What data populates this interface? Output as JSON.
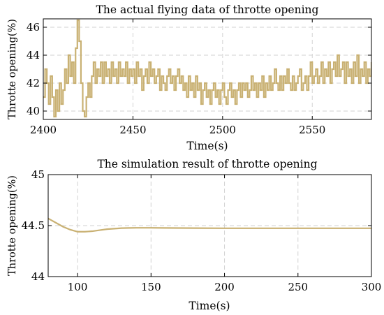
{
  "chart_data": [
    {
      "type": "line",
      "title": "The actual flying data of throtte opening",
      "xlabel": "Time(s)",
      "ylabel": "Throtte opening(%)",
      "xlim": [
        2400,
        2583
      ],
      "ylim": [
        39.4,
        46.6
      ],
      "xticks": [
        2400,
        2450,
        2500,
        2550
      ],
      "yticks": [
        40,
        42,
        44,
        46
      ],
      "grid": true,
      "color": "#c9b173",
      "series": [
        {
          "x": [
            2400,
            2401,
            2402,
            2403,
            2404,
            2405,
            2406,
            2407,
            2408,
            2409,
            2410,
            2411,
            2412,
            2413,
            2414,
            2415,
            2416,
            2417,
            2418,
            2419,
            2420,
            2421,
            2422,
            2423,
            2424,
            2425,
            2426,
            2427,
            2428,
            2429,
            2430,
            2431,
            2432,
            2433,
            2434,
            2435,
            2436,
            2437,
            2438,
            2439,
            2440,
            2441,
            2442,
            2443,
            2444,
            2445,
            2446,
            2447,
            2448,
            2449,
            2450,
            2451,
            2452,
            2453,
            2454,
            2455,
            2456,
            2457,
            2458,
            2459,
            2460,
            2461,
            2462,
            2463,
            2464,
            2465,
            2466,
            2467,
            2468,
            2469,
            2470,
            2471,
            2472,
            2473,
            2474,
            2475,
            2476,
            2477,
            2478,
            2479,
            2480,
            2481,
            2482,
            2483,
            2484,
            2485,
            2486,
            2487,
            2488,
            2489,
            2490,
            2491,
            2492,
            2493,
            2494,
            2495,
            2496,
            2497,
            2498,
            2499,
            2500,
            2501,
            2502,
            2503,
            2504,
            2505,
            2506,
            2507,
            2508,
            2509,
            2510,
            2511,
            2512,
            2513,
            2514,
            2515,
            2516,
            2517,
            2518,
            2519,
            2520,
            2521,
            2522,
            2523,
            2524,
            2525,
            2526,
            2527,
            2528,
            2529,
            2530,
            2531,
            2532,
            2533,
            2534,
            2535,
            2536,
            2537,
            2538,
            2539,
            2540,
            2541,
            2542,
            2543,
            2544,
            2545,
            2546,
            2547,
            2548,
            2549,
            2550,
            2551,
            2552,
            2553,
            2554,
            2555,
            2556,
            2557,
            2558,
            2559,
            2560,
            2561,
            2562,
            2563,
            2564,
            2565,
            2566,
            2567,
            2568,
            2569,
            2570,
            2571,
            2572,
            2573,
            2574,
            2575,
            2576,
            2577,
            2578,
            2579,
            2580,
            2581,
            2582,
            2583
          ],
          "y": [
            41.0,
            43.0,
            42.0,
            40.5,
            42.5,
            41.0,
            39.6,
            41.5,
            40.0,
            42.0,
            40.5,
            41.5,
            43.0,
            42.0,
            44.0,
            42.5,
            43.5,
            42.0,
            44.5,
            46.5,
            45.0,
            42.0,
            40.0,
            39.6,
            41.0,
            42.0,
            41.0,
            42.5,
            43.5,
            42.0,
            43.0,
            42.5,
            43.5,
            42.0,
            43.5,
            42.5,
            43.0,
            42.0,
            43.5,
            42.5,
            43.0,
            42.0,
            43.5,
            42.5,
            43.0,
            42.5,
            43.5,
            42.0,
            43.0,
            42.5,
            43.0,
            42.0,
            43.5,
            42.5,
            43.0,
            41.5,
            42.5,
            43.0,
            42.0,
            43.5,
            42.5,
            43.0,
            42.0,
            42.5,
            43.0,
            41.5,
            42.5,
            42.0,
            41.5,
            42.5,
            43.0,
            42.0,
            42.5,
            41.5,
            42.5,
            43.0,
            42.0,
            42.5,
            41.5,
            42.0,
            41.0,
            42.5,
            41.5,
            42.0,
            41.0,
            42.5,
            41.5,
            42.0,
            40.5,
            41.5,
            42.0,
            41.0,
            41.5,
            40.5,
            41.5,
            42.0,
            41.0,
            41.5,
            40.5,
            41.5,
            42.0,
            41.0,
            40.5,
            41.5,
            42.0,
            41.0,
            41.5,
            40.5,
            41.5,
            42.0,
            41.0,
            42.0,
            41.5,
            42.0,
            41.0,
            41.5,
            42.5,
            41.5,
            42.0,
            41.0,
            42.0,
            41.5,
            42.5,
            41.0,
            42.0,
            41.5,
            42.5,
            41.5,
            42.0,
            43.0,
            42.0,
            41.5,
            42.5,
            41.5,
            42.5,
            42.0,
            43.0,
            42.0,
            41.5,
            42.5,
            41.5,
            42.0,
            42.5,
            43.0,
            41.5,
            42.0,
            42.5,
            41.5,
            42.5,
            43.5,
            42.0,
            42.5,
            43.0,
            42.0,
            42.5,
            43.5,
            42.0,
            43.0,
            42.5,
            43.5,
            42.0,
            43.0,
            43.5,
            42.5,
            44.0,
            42.5,
            43.0,
            43.5,
            42.0,
            43.5,
            42.5,
            43.0,
            42.0,
            43.5,
            42.5,
            44.0,
            42.0,
            43.0,
            42.5,
            43.5,
            42.0,
            43.0,
            42.5,
            43.5
          ]
        }
      ]
    },
    {
      "type": "line",
      "title": "The simulation result of throtte opening",
      "xlabel": "Time(s)",
      "ylabel": "Throtte opening(%)",
      "xlim": [
        80,
        300
      ],
      "ylim": [
        44,
        45
      ],
      "xticks": [
        100,
        150,
        200,
        250,
        300
      ],
      "yticks": [
        44,
        44.5,
        45
      ],
      "grid": true,
      "color": "#c9b173",
      "series": [
        {
          "x": [
            80,
            85,
            90,
            95,
            100,
            105,
            110,
            115,
            120,
            125,
            130,
            135,
            140,
            150,
            160,
            170,
            180,
            200,
            220,
            250,
            280,
            300
          ],
          "y": [
            44.57,
            44.53,
            44.49,
            44.46,
            44.44,
            44.44,
            44.445,
            44.455,
            44.465,
            44.47,
            44.475,
            44.477,
            44.478,
            44.478,
            44.477,
            44.476,
            44.475,
            44.474,
            44.474,
            44.474,
            44.474,
            44.474
          ]
        }
      ]
    }
  ]
}
